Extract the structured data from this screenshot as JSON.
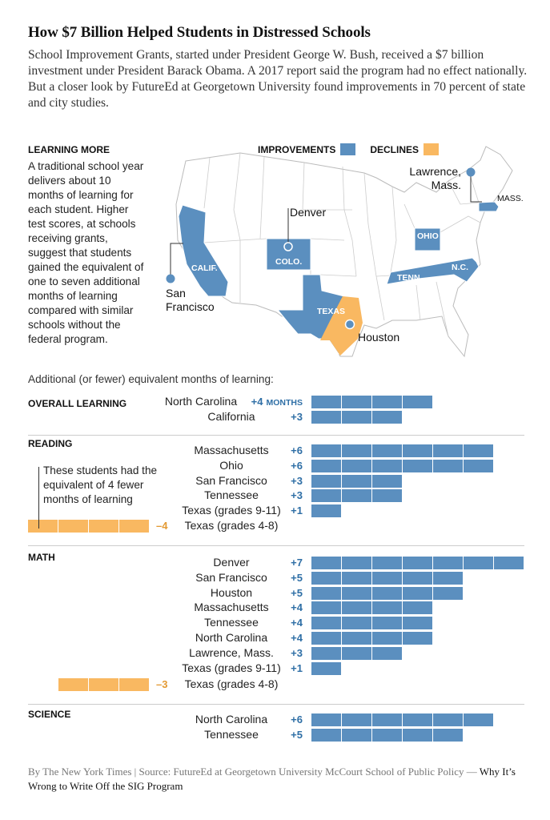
{
  "header": {
    "title": "How $7 Billion Helped Students in Distressed Schools",
    "subtitle": "School Improvement Grants, started under President George W. Bush, received a $7 billion investment under President Barack Obama. A 2017 report said the program had no effect nationally. But a closer look by FutureEd at Georgetown University found improvements in 70 percent of state and city studies."
  },
  "learning_more": {
    "title": "LEARNING MORE",
    "text": "A traditional school year delivers about 10 months of learning for each student. Higher test scores, at schools receiving grants, suggest that students gained the equivalent of one to seven additional months of learning compared with similar schools without the federal program."
  },
  "legend": {
    "improvements": "IMPROVEMENTS",
    "declines": "DECLINES"
  },
  "colors": {
    "improvement": "#5b8fbf",
    "decline": "#f9b861",
    "improvement_text": "#2f6fa6",
    "decline_text": "#e39a33"
  },
  "map": {
    "state_labels": [
      "CALIF.",
      "COLO.",
      "TEXAS",
      "OHIO",
      "TENN.",
      "N.C.",
      "MASS."
    ],
    "city_labels": {
      "sf_1": "San",
      "sf_2": "Francisco",
      "denver": "Denver",
      "houston": "Houston",
      "lawrence_1": "Lawrence,",
      "lawrence_2": "Mass."
    }
  },
  "annotation": "These students had the equivalent of 4 fewer months of learning",
  "chart_data": {
    "type": "bar",
    "subtitle": "Additional (or fewer) equivalent months of learning:",
    "unit_label": "MONTHS",
    "sections": [
      {
        "name": "OVERALL LEARNING",
        "rows": [
          {
            "label": "North Carolina",
            "value": 4,
            "value_label": "+4"
          },
          {
            "label": "California",
            "value": 3,
            "value_label": "+3"
          }
        ]
      },
      {
        "name": "READING",
        "rows": [
          {
            "label": "Massachusetts",
            "value": 6,
            "value_label": "+6"
          },
          {
            "label": "Ohio",
            "value": 6,
            "value_label": "+6"
          },
          {
            "label": "San Francisco",
            "value": 3,
            "value_label": "+3"
          },
          {
            "label": "Tennessee",
            "value": 3,
            "value_label": "+3"
          },
          {
            "label": "Texas (grades 9-11)",
            "value": 1,
            "value_label": "+1"
          },
          {
            "label": "Texas (grades 4-8)",
            "value": -4,
            "value_label": "–4"
          }
        ]
      },
      {
        "name": "MATH",
        "rows": [
          {
            "label": "Denver",
            "value": 7,
            "value_label": "+7"
          },
          {
            "label": "San Francisco",
            "value": 5,
            "value_label": "+5"
          },
          {
            "label": "Houston",
            "value": 5,
            "value_label": "+5"
          },
          {
            "label": "Massachusetts",
            "value": 4,
            "value_label": "+4"
          },
          {
            "label": "Tennessee",
            "value": 4,
            "value_label": "+4"
          },
          {
            "label": "North Carolina",
            "value": 4,
            "value_label": "+4"
          },
          {
            "label": "Lawrence, Mass.",
            "value": 3,
            "value_label": "+3"
          },
          {
            "label": "Texas (grades 9-11)",
            "value": 1,
            "value_label": "+1"
          },
          {
            "label": "Texas (grades 4-8)",
            "value": -3,
            "value_label": "–3"
          }
        ]
      },
      {
        "name": "SCIENCE",
        "rows": [
          {
            "label": "North Carolina",
            "value": 6,
            "value_label": "+6"
          },
          {
            "label": "Tennessee",
            "value": 5,
            "value_label": "+5"
          }
        ]
      }
    ]
  },
  "footer": {
    "source": "By The New York Times | Source: FutureEd at Georgetown University McCourt School of Public Policy — ",
    "link": "Why It’s Wrong to Write Off the SIG Program"
  }
}
